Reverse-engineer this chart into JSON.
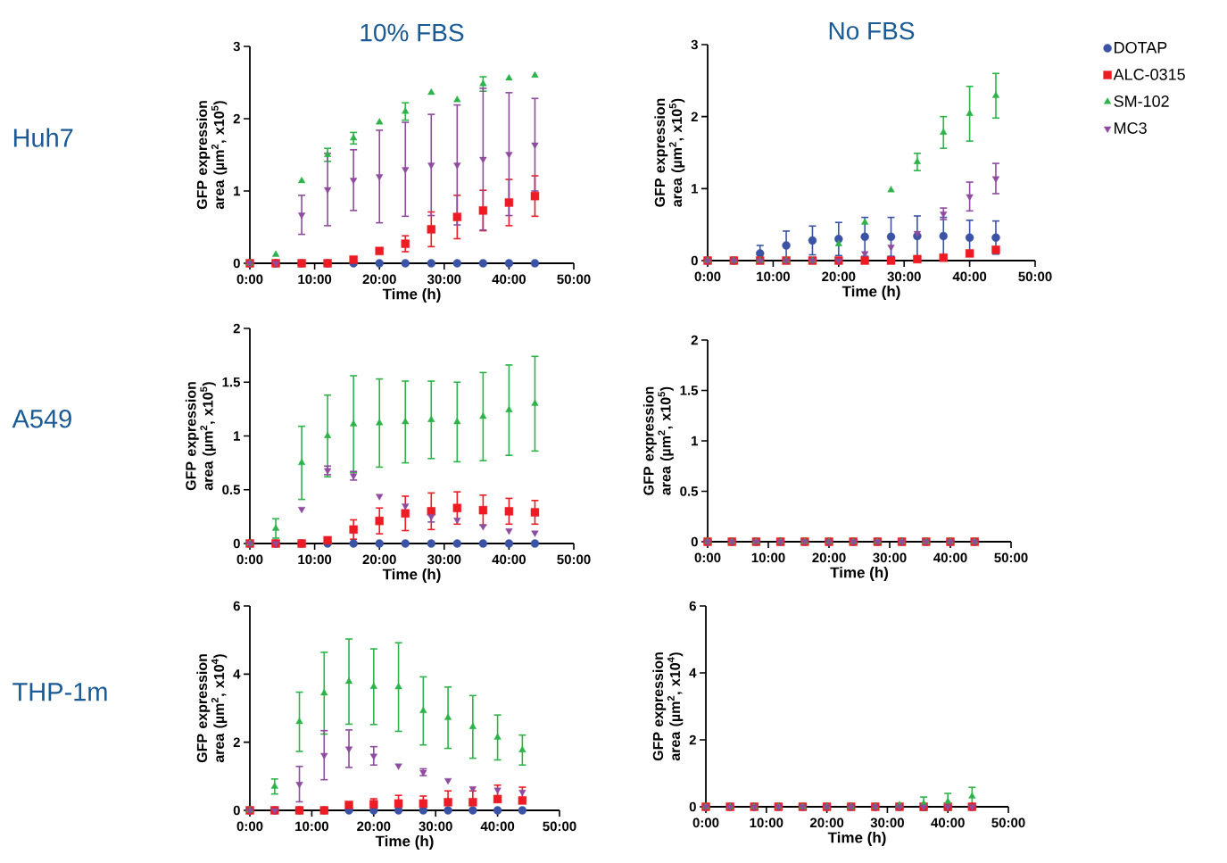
{
  "chart_data": [
    {
      "type": "scatter",
      "title": "10% FBS",
      "annotations": [
        "Huh7"
      ],
      "xlabel": "Time (h)",
      "ylabel": "GFP expression area (µm$^{2}$, x10$^{5}$)",
      "x": [
        0,
        4,
        8,
        12,
        16,
        20,
        24,
        28,
        32,
        36,
        40,
        44
      ],
      "xlim": [
        0,
        50
      ],
      "xticks": [
        {
          "value": 0,
          "label": "0:00"
        },
        {
          "value": 10,
          "label": "10:00"
        },
        {
          "value": 20,
          "label": "20:00"
        },
        {
          "value": 30,
          "label": "30:00"
        },
        {
          "value": 40,
          "label": "40:00"
        },
        {
          "value": 50,
          "label": "50:00"
        }
      ],
      "ylim": [
        0,
        3
      ],
      "yticks": [
        0,
        1,
        2,
        3
      ],
      "series": [
        {
          "color": "#3a53a4",
          "marker": "circle",
          "values": [
            0,
            0,
            0,
            0,
            0,
            0,
            0,
            0,
            0,
            0,
            0,
            0
          ]
        },
        {
          "color": "#ed1c24",
          "marker": "square",
          "values": [
            0,
            0,
            0,
            0,
            0.05,
            0.17,
            0.27,
            0.47,
            0.64,
            0.73,
            0.84,
            0.93
          ],
          "errors": [
            null,
            null,
            null,
            null,
            null,
            null,
            0.11,
            0.24,
            0.3,
            0.28,
            0.32,
            0.28
          ]
        },
        {
          "color": "#2db34a",
          "marker": "triangle",
          "values": [
            0,
            0.12,
            1.14,
            1.5,
            1.73,
            1.95,
            2.1,
            2.36,
            2.26,
            2.48,
            2.56,
            2.6
          ],
          "errors": [
            null,
            null,
            null,
            0.09,
            0.08,
            null,
            0.12,
            null,
            null,
            0.1,
            null,
            null
          ]
        },
        {
          "color": "#8e4c9e",
          "marker": "triangle-down",
          "values": [
            0,
            0,
            0.67,
            1.02,
            1.15,
            1.2,
            1.3,
            1.36,
            1.36,
            1.44,
            1.51,
            1.64
          ],
          "errors": [
            null,
            null,
            0.27,
            0.5,
            0.42,
            0.64,
            0.65,
            0.7,
            0.83,
            0.98,
            0.85,
            0.64
          ]
        }
      ]
    },
    {
      "type": "scatter",
      "title": "No FBS",
      "xlabel": "Time (h)",
      "ylabel": "GFP expression area (µm$^{2}$, x10$^{5}$)",
      "legend": "right",
      "x": [
        0,
        4,
        8,
        12,
        16,
        20,
        24,
        28,
        32,
        36,
        40,
        44
      ],
      "xlim": [
        0,
        50
      ],
      "xticks": [
        {
          "value": 0,
          "label": "0:00"
        },
        {
          "value": 10,
          "label": "10:00"
        },
        {
          "value": 20,
          "label": "20:00"
        },
        {
          "value": 30,
          "label": "30:00"
        },
        {
          "value": 40,
          "label": "40:00"
        },
        {
          "value": 50,
          "label": "50:00"
        }
      ],
      "ylim": [
        0,
        3
      ],
      "yticks": [
        0,
        1,
        2,
        3
      ],
      "series": [
        {
          "name": "DOTAP",
          "color": "#3a53a4",
          "marker": "circle",
          "values": [
            0,
            0,
            0.1,
            0.21,
            0.28,
            0.3,
            0.33,
            0.33,
            0.34,
            0.34,
            0.32,
            0.32
          ],
          "errors": [
            null,
            null,
            0.11,
            0.2,
            0.2,
            0.23,
            0.27,
            0.27,
            0.28,
            0.26,
            0.24,
            0.23
          ]
        },
        {
          "name": "ALC-0315",
          "color": "#ed1c24",
          "marker": "square",
          "values": [
            0,
            0,
            0,
            0,
            0,
            0,
            0,
            0,
            0.02,
            0.04,
            0.1,
            0.15
          ]
        },
        {
          "name": "SM-102",
          "color": "#2db34a",
          "marker": "triangle",
          "values": [
            0,
            0,
            0,
            0,
            0,
            0.23,
            0.53,
            0.98,
            1.37,
            1.78,
            2.04,
            2.29
          ],
          "errors": [
            null,
            null,
            null,
            null,
            null,
            null,
            null,
            null,
            0.12,
            0.22,
            0.38,
            0.31
          ]
        },
        {
          "name": "MC3",
          "color": "#8e4c9e",
          "marker": "triangle-down",
          "values": [
            0,
            0,
            0,
            0,
            0,
            0,
            0.1,
            0.19,
            0.38,
            0.65,
            0.89,
            1.14
          ],
          "errors": [
            null,
            null,
            null,
            null,
            null,
            null,
            null,
            null,
            null,
            0.08,
            0.2,
            0.21
          ]
        }
      ]
    },
    {
      "type": "scatter",
      "annotations": [
        "A549"
      ],
      "xlabel": "Time (h)",
      "ylabel": "GFP expression area (µm$^{2}$, x10$^{5}$)",
      "x": [
        0,
        4,
        8,
        12,
        16,
        20,
        24,
        28,
        32,
        36,
        40,
        44
      ],
      "xlim": [
        0,
        50
      ],
      "xticks": [
        {
          "value": 0,
          "label": "0:00"
        },
        {
          "value": 10,
          "label": "10:00"
        },
        {
          "value": 20,
          "label": "20:00"
        },
        {
          "value": 30,
          "label": "30:00"
        },
        {
          "value": 40,
          "label": "40:00"
        },
        {
          "value": 50,
          "label": "50:00"
        }
      ],
      "ylim": [
        0,
        2
      ],
      "yticks": [
        0,
        0.5,
        1,
        1.5,
        2
      ],
      "series": [
        {
          "color": "#3a53a4",
          "marker": "circle",
          "values": [
            0,
            0,
            0,
            0,
            0,
            0,
            0,
            0,
            0,
            0,
            0,
            0
          ]
        },
        {
          "color": "#ed1c24",
          "marker": "square",
          "values": [
            0,
            0,
            0,
            0.03,
            0.13,
            0.21,
            0.28,
            0.3,
            0.33,
            0.31,
            0.3,
            0.29
          ],
          "errors": [
            null,
            null,
            null,
            null,
            0.09,
            0.12,
            0.16,
            0.17,
            0.15,
            0.14,
            0.12,
            0.11
          ]
        },
        {
          "color": "#2db34a",
          "marker": "triangle",
          "values": [
            0,
            0.14,
            0.75,
            1.0,
            1.11,
            1.12,
            1.13,
            1.15,
            1.13,
            1.18,
            1.24,
            1.3
          ],
          "errors": [
            null,
            0.09,
            0.34,
            0.38,
            0.45,
            0.41,
            0.38,
            0.36,
            0.37,
            0.41,
            0.42,
            0.44
          ]
        },
        {
          "color": "#8e4c9e",
          "marker": "triangle-down",
          "values": [
            0,
            0,
            0.32,
            0.68,
            0.63,
            0.44,
            0.35,
            0.25,
            0.22,
            0.16,
            0.12,
            0.1
          ],
          "errors": [
            null,
            null,
            null,
            0.04,
            0.04,
            null,
            null,
            0.05,
            null,
            null,
            null,
            null
          ]
        }
      ]
    },
    {
      "type": "scatter",
      "xlabel": "Time (h)",
      "ylabel": "GFP expression area (µm$^{2}$, x10$^{5}$)",
      "x": [
        0,
        4,
        8,
        12,
        16,
        20,
        24,
        28,
        32,
        36,
        40,
        44
      ],
      "xlim": [
        0,
        50
      ],
      "xticks": [
        {
          "value": 0,
          "label": "0:00"
        },
        {
          "value": 10,
          "label": "10:00"
        },
        {
          "value": 20,
          "label": "20:00"
        },
        {
          "value": 30,
          "label": "30:00"
        },
        {
          "value": 40,
          "label": "40:00"
        },
        {
          "value": 50,
          "label": "50:00"
        }
      ],
      "ylim": [
        0,
        2
      ],
      "yticks": [
        0,
        0.5,
        1,
        1.5,
        2
      ],
      "series": [
        {
          "color": "#3a53a4",
          "marker": "circle",
          "values": [
            0,
            0,
            0,
            0,
            0,
            0,
            0,
            0,
            0,
            0,
            0,
            0
          ]
        },
        {
          "color": "#ed1c24",
          "marker": "square",
          "values": [
            0,
            0,
            0,
            0,
            0,
            0,
            0,
            0,
            0,
            0,
            0,
            0
          ]
        },
        {
          "color": "#2db34a",
          "marker": "triangle",
          "values": [
            0,
            0,
            0,
            0,
            0,
            0,
            0,
            0,
            0,
            0,
            0,
            0
          ]
        },
        {
          "color": "#8e4c9e",
          "marker": "triangle-down",
          "values": [
            0,
            0,
            0,
            0,
            0,
            0,
            0,
            0,
            0,
            0,
            0,
            0
          ]
        }
      ]
    },
    {
      "type": "scatter",
      "annotations": [
        "THP-1m"
      ],
      "xlabel": "Time (h)",
      "ylabel": "GFP expression area (µm$^{2}$, x10$^{4}$)",
      "x": [
        0,
        4,
        8,
        12,
        16,
        20,
        24,
        28,
        32,
        36,
        40,
        44
      ],
      "xlim": [
        0,
        50
      ],
      "xticks": [
        {
          "value": 0,
          "label": "0:00"
        },
        {
          "value": 10,
          "label": "10:00"
        },
        {
          "value": 20,
          "label": "20:00"
        },
        {
          "value": 30,
          "label": "30:00"
        },
        {
          "value": 40,
          "label": "40:00"
        },
        {
          "value": 50,
          "label": "50:00"
        }
      ],
      "ylim": [
        0,
        6
      ],
      "yticks": [
        0,
        2,
        4,
        6
      ],
      "series": [
        {
          "color": "#3a53a4",
          "marker": "circle",
          "values": [
            0,
            0,
            0,
            0,
            0,
            0,
            0,
            0,
            0,
            0,
            0,
            0
          ]
        },
        {
          "color": "#ed1c24",
          "marker": "square",
          "values": [
            0,
            0,
            0,
            0,
            0.16,
            0.18,
            0.2,
            0.2,
            0.24,
            0.24,
            0.33,
            0.29
          ],
          "errors": [
            null,
            null,
            null,
            null,
            null,
            [
              0.18,
              0.34
            ],
            [
              0.2,
              0.44
            ],
            [
              0.2,
              0.42
            ],
            [
              0.24,
              0.57
            ],
            [
              0.24,
              0.57
            ],
            [
              0.33,
              0.74
            ],
            [
              0.29,
              0.68
            ]
          ]
        },
        {
          "color": "#2db34a",
          "marker": "triangle",
          "values": [
            0,
            0.7,
            2.6,
            3.44,
            3.78,
            3.63,
            3.62,
            2.92,
            2.72,
            2.45,
            2.14,
            1.77
          ],
          "errors": [
            null,
            0.22,
            0.87,
            1.2,
            1.25,
            1.11,
            1.3,
            1.0,
            0.9,
            0.92,
            0.66,
            0.44
          ]
        },
        {
          "color": "#8e4c9e",
          "marker": "triangle-down",
          "values": [
            0,
            0,
            0.77,
            1.62,
            1.81,
            1.6,
            1.31,
            1.12,
            0.88,
            0.64,
            0.6,
            0.54
          ],
          "errors": [
            null,
            null,
            0.52,
            0.72,
            0.55,
            0.27,
            null,
            0.1,
            null,
            null,
            null,
            null
          ]
        }
      ]
    },
    {
      "type": "scatter",
      "xlabel": "Time (h)",
      "ylabel": "GFP expression area (µm$^{2}$, x10$^{4}$)",
      "x": [
        0,
        4,
        8,
        12,
        16,
        20,
        24,
        28,
        32,
        36,
        40,
        44
      ],
      "xlim": [
        0,
        50
      ],
      "xticks": [
        {
          "value": 0,
          "label": "0:00"
        },
        {
          "value": 10,
          "label": "10:00"
        },
        {
          "value": 20,
          "label": "20:00"
        },
        {
          "value": 30,
          "label": "30:00"
        },
        {
          "value": 40,
          "label": "40:00"
        },
        {
          "value": 50,
          "label": "50:00"
        }
      ],
      "ylim": [
        0,
        6
      ],
      "yticks": [
        0,
        2,
        4,
        6
      ],
      "series": [
        {
          "color": "#3a53a4",
          "marker": "circle",
          "values": [
            0,
            0,
            0,
            0,
            0,
            0,
            0,
            0,
            0,
            0,
            0,
            0
          ]
        },
        {
          "color": "#ed1c24",
          "marker": "square",
          "values": [
            0,
            0,
            0,
            0,
            0,
            0,
            0,
            0,
            0,
            0,
            0,
            0
          ]
        },
        {
          "color": "#2db34a",
          "marker": "triangle",
          "values": [
            0,
            0,
            0,
            0,
            0,
            0,
            0,
            0,
            0.05,
            0.09,
            0.15,
            0.31
          ],
          "errors": [
            null,
            null,
            null,
            null,
            null,
            null,
            null,
            null,
            null,
            0.2,
            0.25,
            0.27
          ]
        },
        {
          "color": "#8e4c9e",
          "marker": "triangle-down",
          "values": [
            0,
            0,
            0,
            0,
            0,
            0,
            0,
            0,
            0,
            0,
            0,
            0
          ]
        }
      ]
    }
  ]
}
